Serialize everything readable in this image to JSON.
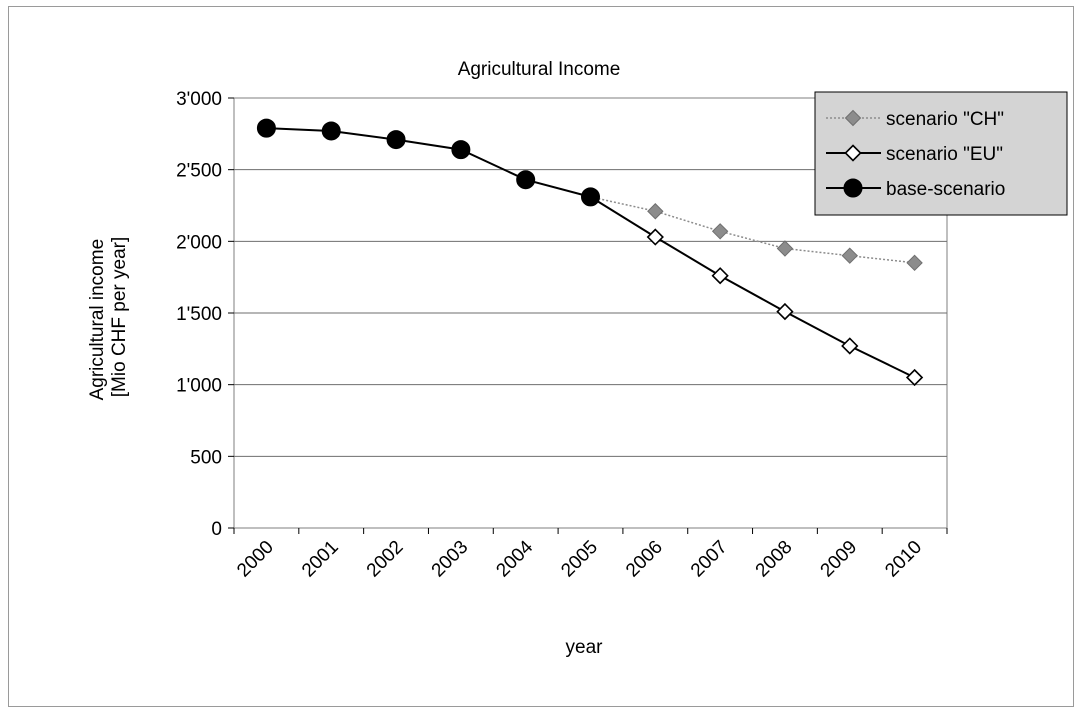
{
  "chart_data": {
    "type": "line",
    "title": "Agricultural Income",
    "xlabel": "year",
    "ylabel": [
      "Agricultural income",
      "[Mio CHF per year]"
    ],
    "categories": [
      "2000",
      "2001",
      "2002",
      "2003",
      "2004",
      "2005",
      "2006",
      "2007",
      "2008",
      "2009",
      "2010"
    ],
    "ylim": [
      0,
      3000
    ],
    "yticks": [
      0,
      500,
      1000,
      1500,
      2000,
      2500,
      3000
    ],
    "ytick_labels": [
      "0",
      "500",
      "1'000",
      "1'500",
      "2'000",
      "2'500",
      "3'000"
    ],
    "grid": true,
    "legend_position": "top-right",
    "series": [
      {
        "name": "scenario \"CH\"",
        "color": "#8c8c8c",
        "marker": "diamond-filled",
        "line": "dotted",
        "values": [
          null,
          null,
          null,
          null,
          null,
          2310,
          2210,
          2070,
          1950,
          1900,
          1850
        ]
      },
      {
        "name": "scenario \"EU\"",
        "color": "#000000",
        "marker": "diamond-open",
        "line": "solid",
        "values": [
          null,
          null,
          null,
          null,
          null,
          2310,
          2030,
          1760,
          1510,
          1270,
          1050
        ]
      },
      {
        "name": "base-scenario",
        "color": "#000000",
        "marker": "circle-filled",
        "line": "solid",
        "values": [
          2790,
          2770,
          2710,
          2640,
          2430,
          2310,
          null,
          null,
          null,
          null,
          null
        ]
      }
    ]
  }
}
